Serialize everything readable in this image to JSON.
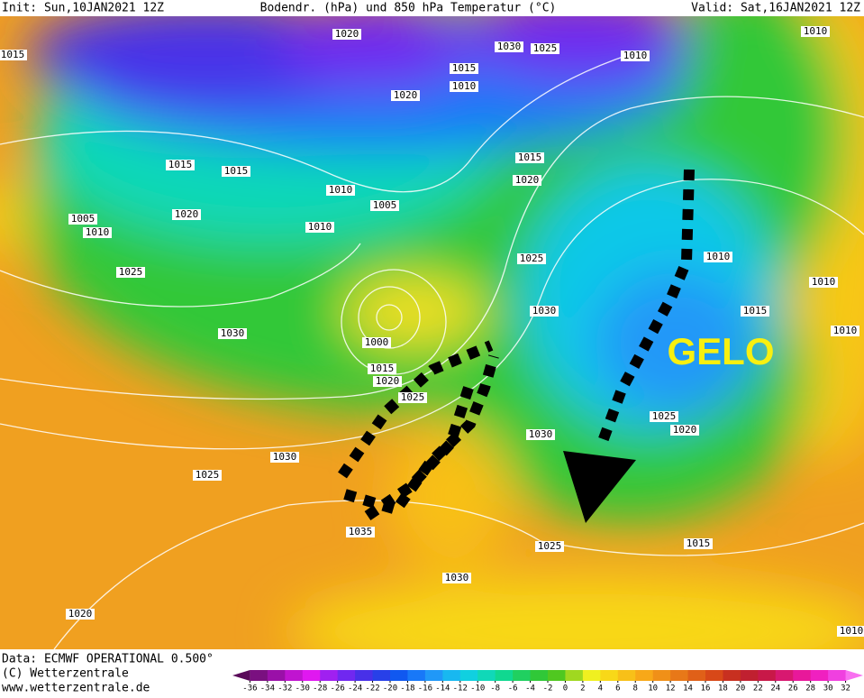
{
  "header": {
    "init": "Init: Sun,10JAN2021 12Z",
    "title": "Bodendr. (hPa) und 850 hPa Temperatur (°C)",
    "valid": "Valid: Sat,16JAN2021 12Z"
  },
  "annotation": "GELO",
  "isobar_labels": [
    "1020",
    "1030",
    "1025",
    "1010",
    "1015",
    "1010",
    "1020",
    "1015",
    "1015",
    "1015",
    "1020",
    "1010",
    "1005",
    "1020",
    "1010",
    "1005",
    "1010",
    "1025",
    "1025",
    "1010",
    "1010",
    "1015",
    "1030",
    "1030",
    "1010",
    "1000",
    "1015",
    "1020",
    "1025",
    "1025",
    "1020",
    "1030",
    "1030",
    "1025",
    "1035",
    "1025",
    "1015",
    "1030",
    "1020",
    "1010",
    "1015",
    "1010"
  ],
  "footer": {
    "data": "Data: ECMWF OPERATIONAL 0.500°",
    "copyright": "(C) Wetterzentrale",
    "url": "www.wetterzentrale.de"
  },
  "colorbar": {
    "ticks": [
      -36,
      -34,
      -32,
      -30,
      -28,
      -26,
      -24,
      -22,
      -20,
      -18,
      -16,
      -14,
      -12,
      -10,
      -8,
      -6,
      -4,
      -2,
      0,
      2,
      4,
      6,
      8,
      10,
      12,
      14,
      16,
      18,
      20,
      22,
      24,
      26,
      28,
      30,
      32
    ],
    "colors": [
      "#5a0a5a",
      "#7a1080",
      "#9a10a8",
      "#c014d0",
      "#e018f0",
      "#a020f0",
      "#7028f0",
      "#4830e8",
      "#2840e8",
      "#1058f0",
      "#1878f8",
      "#2098f8",
      "#18b8f0",
      "#10d0e0",
      "#10d8b8",
      "#10d890",
      "#20d060",
      "#30c838",
      "#50c820",
      "#a0d820",
      "#f0f020",
      "#f8d818",
      "#f8c018",
      "#f8a818",
      "#f09018",
      "#e87818",
      "#e06018",
      "#d84818",
      "#c83020",
      "#c02030",
      "#c81848",
      "#d81870",
      "#e8189a",
      "#f020c0",
      "#f040e0",
      "#f870f0"
    ]
  }
}
